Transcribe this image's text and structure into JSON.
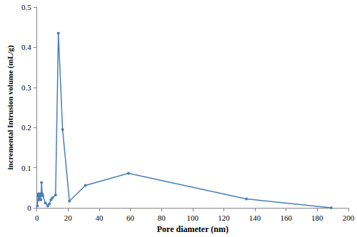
{
  "chart_data": {
    "type": "line",
    "x_label": "Pore diameter (nm)",
    "y_label": "incremental Intrusion volume (mL/g)",
    "x": [
      0.3,
      0.7,
      1.0,
      1.4,
      1.8,
      2.2,
      2.6,
      3.0,
      3.4,
      3.8,
      5.5,
      7.0,
      8.0,
      9.0,
      10.0,
      12.0,
      13.8,
      16.5,
      20.9,
      31.2,
      58.8,
      134.5,
      188.9
    ],
    "values": [
      0.005,
      0.03,
      0.035,
      0.02,
      0.03,
      0.035,
      0.02,
      0.063,
      0.035,
      0.03,
      0.012,
      0.005,
      0.01,
      0.02,
      0.025,
      0.032,
      0.435,
      0.195,
      0.017,
      0.056,
      0.086,
      0.022,
      0.0
    ],
    "color": "#4a7ebb",
    "marker": "circle",
    "xlim": [
      0,
      200
    ],
    "xticks": [
      0,
      20,
      40,
      60,
      80,
      100,
      120,
      140,
      160,
      180,
      200
    ],
    "ylim": [
      0,
      0.5
    ],
    "yticks": [
      0,
      0.1,
      0.2,
      0.3,
      0.4,
      0.5
    ],
    "grid": false
  }
}
